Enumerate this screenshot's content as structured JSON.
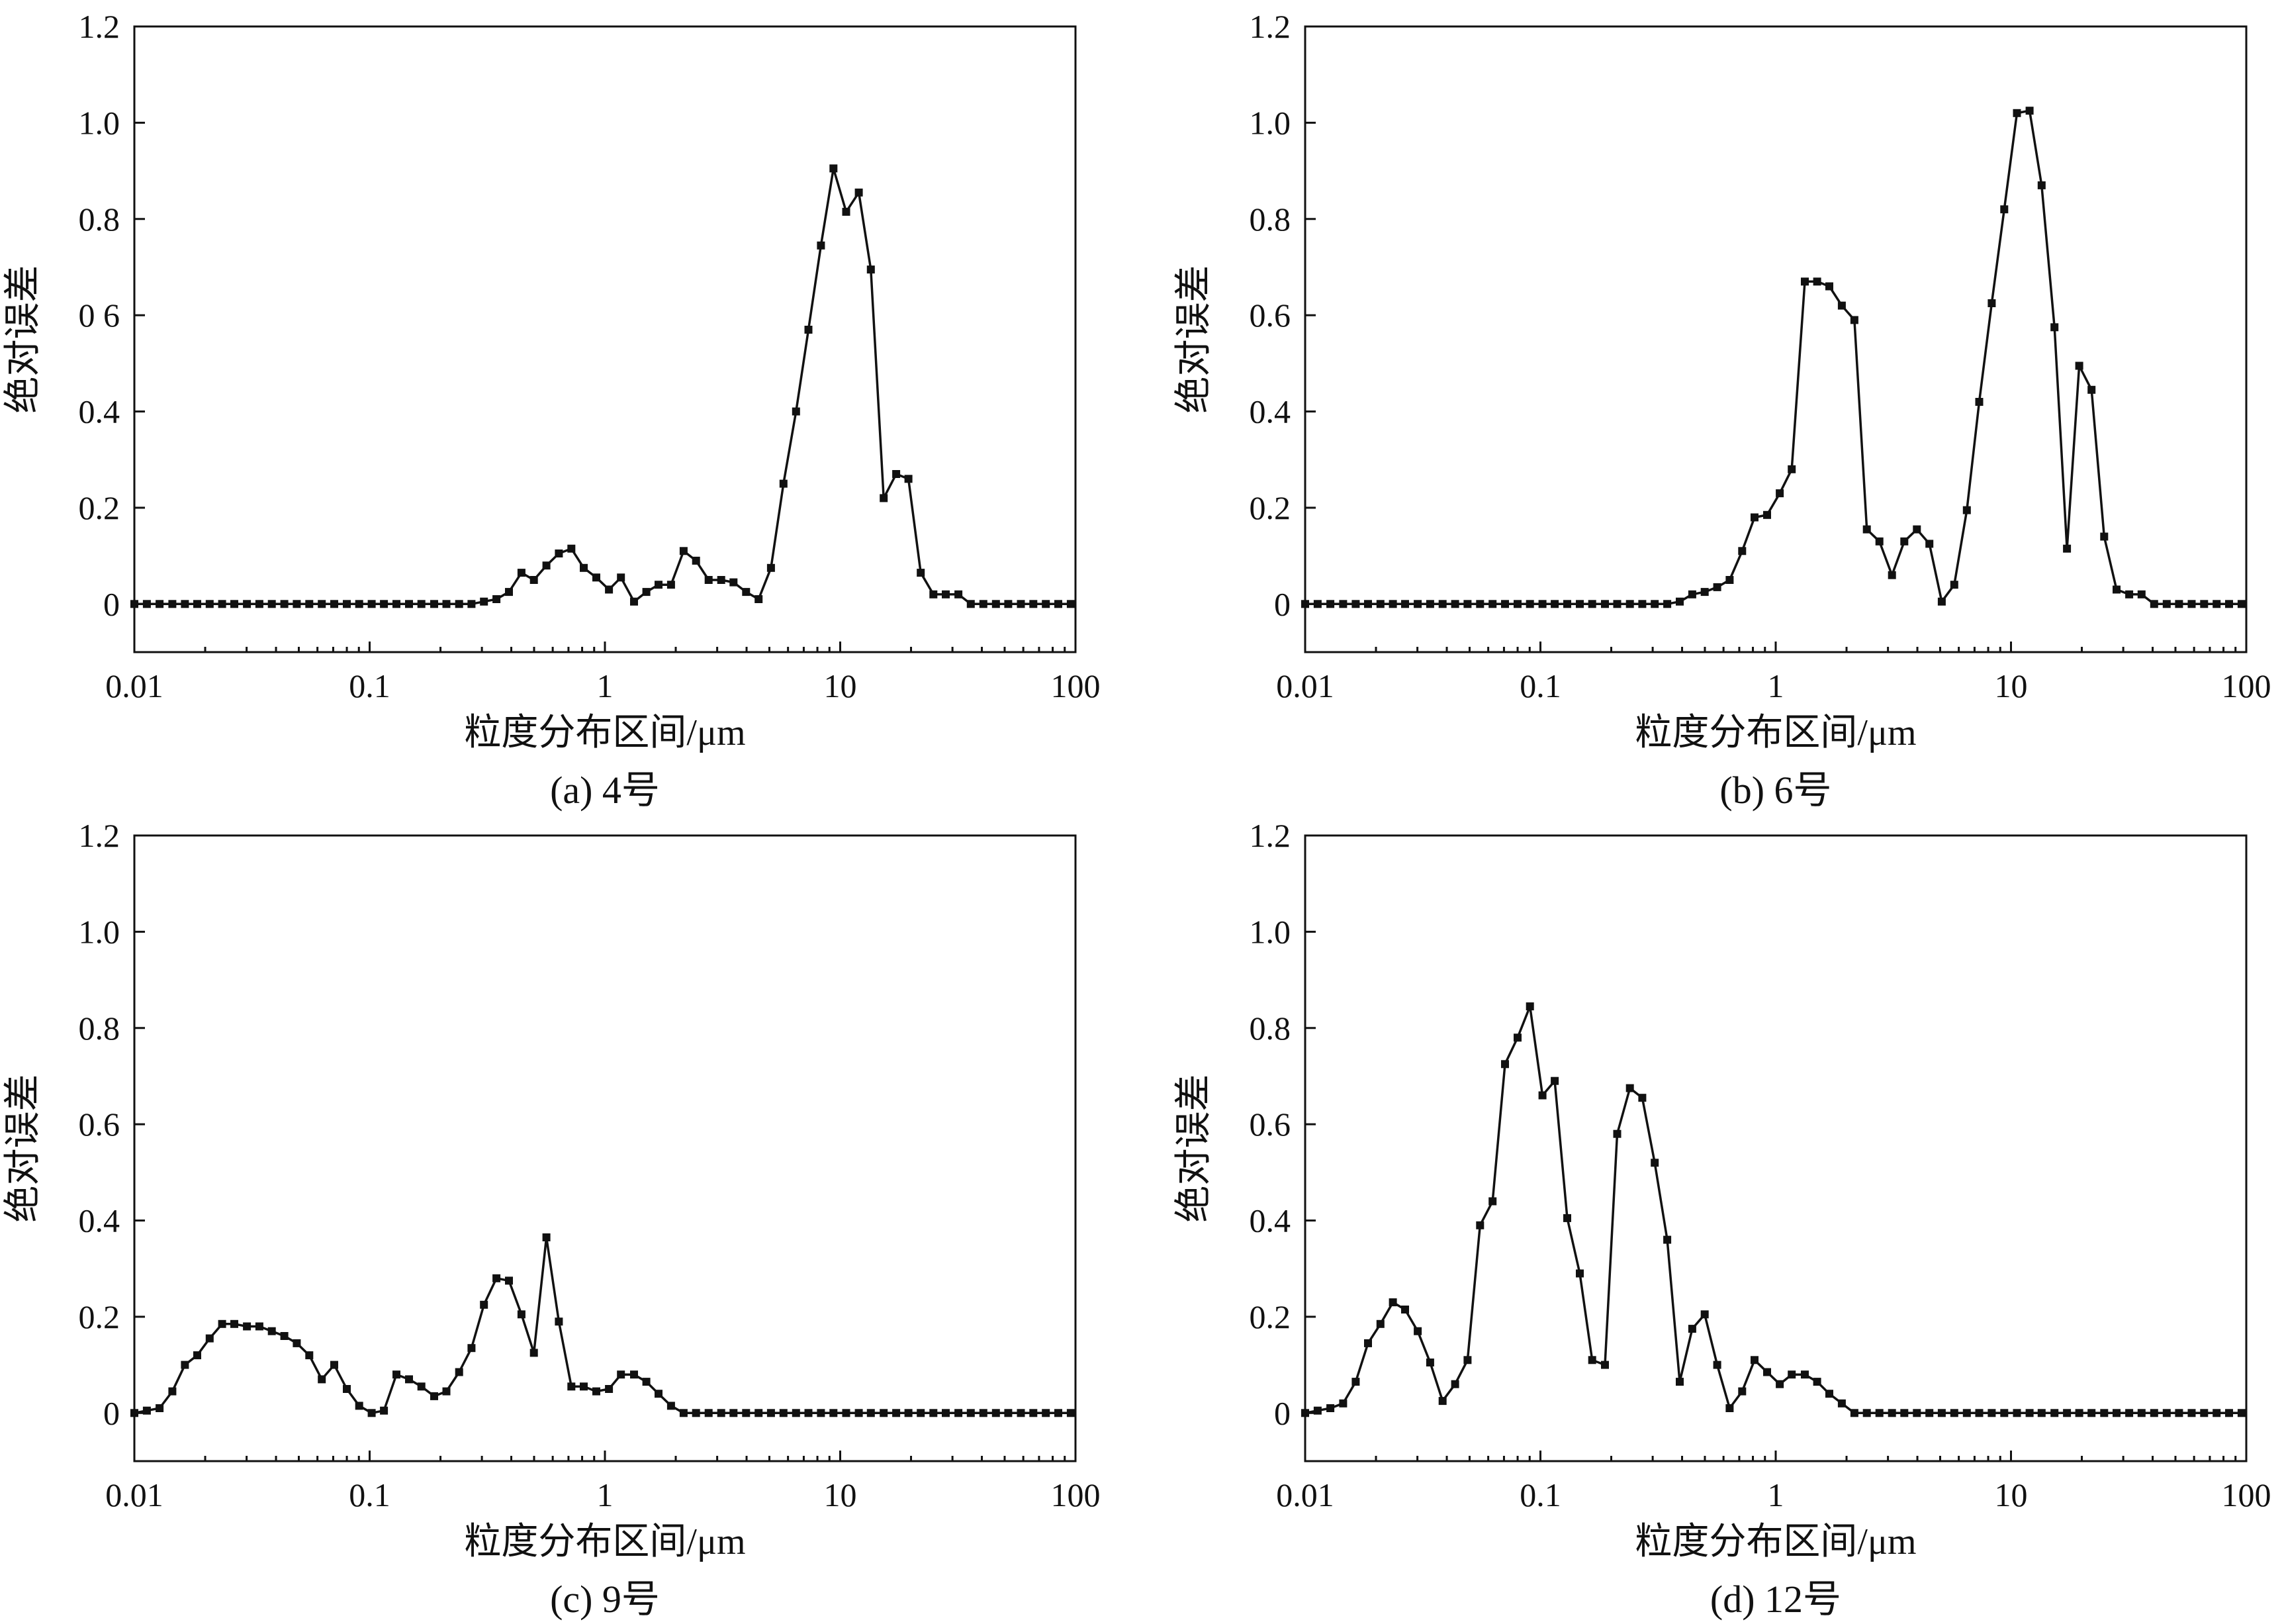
{
  "chart_data": [
    {
      "type": "line",
      "caption": "(a) 4号",
      "xlabel": "粒度分布区间/μm",
      "ylabel": "绝对误差",
      "xscale": "log",
      "xlim": [
        0.01,
        100
      ],
      "ylim": [
        -0.1,
        1.2
      ],
      "xticks": [
        "0.01",
        "0.1",
        "1",
        "10",
        "100"
      ],
      "yticks": [
        "0",
        "0.2",
        "0.4",
        "0 6",
        "0.8",
        "1.0",
        "1.2"
      ],
      "ytick_values": [
        0,
        0.2,
        0.4,
        0.6,
        0.8,
        1.0,
        1.2
      ],
      "grid": false,
      "series": [
        {
          "x": [
            0.01,
            0.0113,
            0.0128,
            0.0145,
            0.0164,
            0.0185,
            0.0209,
            0.0236,
            0.0266,
            0.0301,
            0.034,
            0.0384,
            0.0434,
            0.049,
            0.0554,
            0.0626,
            0.0707,
            0.08,
            0.0903,
            0.102,
            0.115,
            0.13,
            0.147,
            0.166,
            0.188,
            0.212,
            0.24,
            0.271,
            0.306,
            0.346,
            0.391,
            0.442,
            0.499,
            0.564,
            0.637,
            0.72,
            0.813,
            0.919,
            1.04,
            1.17,
            1.33,
            1.5,
            1.69,
            1.91,
            2.16,
            2.44,
            2.76,
            3.12,
            3.52,
            3.98,
            4.5,
            5.08,
            5.74,
            6.49,
            7.33,
            8.28,
            9.36,
            10.6,
            12.0,
            13.5,
            15.3,
            17.3,
            19.5,
            22.0,
            24.9,
            28.1,
            31.8,
            35.9,
            40.6,
            45.9,
            51.8,
            58.6,
            66.2,
            74.8,
            84.5,
            95.5
          ],
          "y": [
            0,
            0,
            0,
            0,
            0,
            0,
            0,
            0,
            0,
            0,
            0,
            0,
            0,
            0,
            0,
            0,
            0,
            0,
            0,
            0,
            0,
            0,
            0,
            0,
            0,
            0,
            0,
            0,
            0.005,
            0.01,
            0.025,
            0.065,
            0.05,
            0.08,
            0.105,
            0.115,
            0.075,
            0.055,
            0.03,
            0.055,
            0.005,
            0.025,
            0.04,
            0.04,
            0.11,
            0.09,
            0.05,
            0.05,
            0.045,
            0.025,
            0.01,
            0.075,
            0.25,
            0.4,
            0.57,
            0.745,
            0.905,
            0.815,
            0.855,
            0.695,
            0.22,
            0.27,
            0.26,
            0.065,
            0.02,
            0.02,
            0.02,
            0,
            0,
            0,
            0,
            0,
            0,
            0,
            0,
            0
          ]
        }
      ]
    },
    {
      "type": "line",
      "caption": "(b) 6号",
      "xlabel": "粒度分布区间/μm",
      "ylabel": "绝对误差",
      "xscale": "log",
      "xlim": [
        0.01,
        100
      ],
      "ylim": [
        -0.1,
        1.2
      ],
      "xticks": [
        "0.01",
        "0.1",
        "1",
        "10",
        "100"
      ],
      "yticks": [
        "0",
        "0.2",
        "0.4",
        "0.6",
        "0.8",
        "1.0",
        "1.2"
      ],
      "ytick_values": [
        0,
        0.2,
        0.4,
        0.6,
        0.8,
        1.0,
        1.2
      ],
      "grid": false,
      "series": [
        {
          "x": [
            0.01,
            0.0113,
            0.0128,
            0.0145,
            0.0164,
            0.0185,
            0.0209,
            0.0236,
            0.0266,
            0.0301,
            0.034,
            0.0384,
            0.0434,
            0.049,
            0.0554,
            0.0626,
            0.0707,
            0.08,
            0.0903,
            0.102,
            0.115,
            0.13,
            0.147,
            0.166,
            0.188,
            0.212,
            0.24,
            0.271,
            0.306,
            0.346,
            0.391,
            0.442,
            0.499,
            0.564,
            0.637,
            0.72,
            0.813,
            0.919,
            1.04,
            1.17,
            1.33,
            1.5,
            1.69,
            1.91,
            2.16,
            2.44,
            2.76,
            3.12,
            3.52,
            3.98,
            4.5,
            5.08,
            5.74,
            6.49,
            7.33,
            8.28,
            9.36,
            10.6,
            12.0,
            13.5,
            15.3,
            17.3,
            19.5,
            22.0,
            24.9,
            28.1,
            31.8,
            35.9,
            40.6,
            45.9,
            51.8,
            58.6,
            66.2,
            74.8,
            84.5,
            95.5
          ],
          "y": [
            0,
            0,
            0,
            0,
            0,
            0,
            0,
            0,
            0,
            0,
            0,
            0,
            0,
            0,
            0,
            0,
            0,
            0,
            0,
            0,
            0,
            0,
            0,
            0,
            0,
            0,
            0,
            0,
            0,
            0,
            0.005,
            0.02,
            0.025,
            0.035,
            0.05,
            0.11,
            0.18,
            0.185,
            0.23,
            0.28,
            0.67,
            0.67,
            0.66,
            0.62,
            0.59,
            0.155,
            0.13,
            0.06,
            0.13,
            0.155,
            0.125,
            0.005,
            0.04,
            0.195,
            0.42,
            0.625,
            0.82,
            1.02,
            1.025,
            0.87,
            0.575,
            0.115,
            0.495,
            0.445,
            0.14,
            0.03,
            0.02,
            0.02,
            0,
            0,
            0,
            0,
            0,
            0,
            0,
            0
          ]
        }
      ]
    },
    {
      "type": "line",
      "caption": "(c) 9号",
      "xlabel": "粒度分布区间/μm",
      "ylabel": "绝对误差",
      "xscale": "log",
      "xlim": [
        0.01,
        100
      ],
      "ylim": [
        -0.1,
        1.2
      ],
      "xticks": [
        "0.01",
        "0.1",
        "1",
        "10",
        "100"
      ],
      "yticks": [
        "0",
        "0.2",
        "0.4",
        "0.6",
        "0.8",
        "1.0",
        "1.2"
      ],
      "ytick_values": [
        0,
        0.2,
        0.4,
        0.6,
        0.8,
        1.0,
        1.2
      ],
      "grid": false,
      "series": [
        {
          "x": [
            0.01,
            0.0113,
            0.0128,
            0.0145,
            0.0164,
            0.0185,
            0.0209,
            0.0236,
            0.0266,
            0.0301,
            0.034,
            0.0384,
            0.0434,
            0.049,
            0.0554,
            0.0626,
            0.0707,
            0.08,
            0.0903,
            0.102,
            0.115,
            0.13,
            0.147,
            0.166,
            0.188,
            0.212,
            0.24,
            0.271,
            0.306,
            0.346,
            0.391,
            0.442,
            0.499,
            0.564,
            0.637,
            0.72,
            0.813,
            0.919,
            1.04,
            1.17,
            1.33,
            1.5,
            1.69,
            1.91,
            2.16,
            2.44,
            2.76,
            3.12,
            3.52,
            3.98,
            4.5,
            5.08,
            5.74,
            6.49,
            7.33,
            8.28,
            9.36,
            10.6,
            12.0,
            13.5,
            15.3,
            17.3,
            19.5,
            22.0,
            24.9,
            28.1,
            31.8,
            35.9,
            40.6,
            45.9,
            51.8,
            58.6,
            66.2,
            74.8,
            84.5,
            95.5
          ],
          "y": [
            0,
            0.005,
            0.01,
            0.045,
            0.1,
            0.12,
            0.155,
            0.185,
            0.185,
            0.18,
            0.18,
            0.17,
            0.16,
            0.145,
            0.12,
            0.07,
            0.1,
            0.05,
            0.015,
            0,
            0.005,
            0.08,
            0.07,
            0.055,
            0.035,
            0.045,
            0.085,
            0.135,
            0.225,
            0.28,
            0.275,
            0.205,
            0.125,
            0.365,
            0.19,
            0.055,
            0.055,
            0.045,
            0.05,
            0.08,
            0.08,
            0.065,
            0.04,
            0.015,
            0,
            0,
            0,
            0,
            0,
            0,
            0,
            0,
            0,
            0,
            0,
            0,
            0,
            0,
            0,
            0,
            0,
            0,
            0,
            0,
            0,
            0,
            0,
            0,
            0,
            0,
            0,
            0,
            0,
            0,
            0,
            0
          ]
        }
      ]
    },
    {
      "type": "line",
      "caption": "(d) 12号",
      "xlabel": "粒度分布区间/μm",
      "ylabel": "绝对误差",
      "xscale": "log",
      "xlim": [
        0.01,
        100
      ],
      "ylim": [
        -0.1,
        1.2
      ],
      "xticks": [
        "0.01",
        "0.1",
        "1",
        "10",
        "100"
      ],
      "yticks": [
        "0",
        "0.2",
        "0.4",
        "0.6",
        "0.8",
        "1.0",
        "1.2"
      ],
      "ytick_values": [
        0,
        0.2,
        0.4,
        0.6,
        0.8,
        1.0,
        1.2
      ],
      "grid": false,
      "series": [
        {
          "x": [
            0.01,
            0.0113,
            0.0128,
            0.0145,
            0.0164,
            0.0185,
            0.0209,
            0.0236,
            0.0266,
            0.0301,
            0.034,
            0.0384,
            0.0434,
            0.049,
            0.0554,
            0.0626,
            0.0707,
            0.08,
            0.0903,
            0.102,
            0.115,
            0.13,
            0.147,
            0.166,
            0.188,
            0.212,
            0.24,
            0.271,
            0.306,
            0.346,
            0.391,
            0.442,
            0.499,
            0.564,
            0.637,
            0.72,
            0.813,
            0.919,
            1.04,
            1.17,
            1.33,
            1.5,
            1.69,
            1.91,
            2.16,
            2.44,
            2.76,
            3.12,
            3.52,
            3.98,
            4.5,
            5.08,
            5.74,
            6.49,
            7.33,
            8.28,
            9.36,
            10.6,
            12.0,
            13.5,
            15.3,
            17.3,
            19.5,
            22.0,
            24.9,
            28.1,
            31.8,
            35.9,
            40.6,
            45.9,
            51.8,
            58.6,
            66.2,
            74.8,
            84.5,
            95.5
          ],
          "y": [
            0,
            0.005,
            0.01,
            0.02,
            0.065,
            0.145,
            0.185,
            0.23,
            0.215,
            0.17,
            0.105,
            0.025,
            0.06,
            0.11,
            0.39,
            0.44,
            0.725,
            0.78,
            0.845,
            0.66,
            0.69,
            0.405,
            0.29,
            0.11,
            0.1,
            0.58,
            0.675,
            0.655,
            0.52,
            0.36,
            0.065,
            0.175,
            0.205,
            0.1,
            0.01,
            0.045,
            0.11,
            0.085,
            0.06,
            0.08,
            0.08,
            0.065,
            0.04,
            0.02,
            0,
            0,
            0,
            0,
            0,
            0,
            0,
            0,
            0,
            0,
            0,
            0,
            0,
            0,
            0,
            0,
            0,
            0,
            0,
            0,
            0,
            0,
            0,
            0,
            0,
            0,
            0,
            0,
            0,
            0,
            0,
            0
          ]
        }
      ]
    }
  ]
}
